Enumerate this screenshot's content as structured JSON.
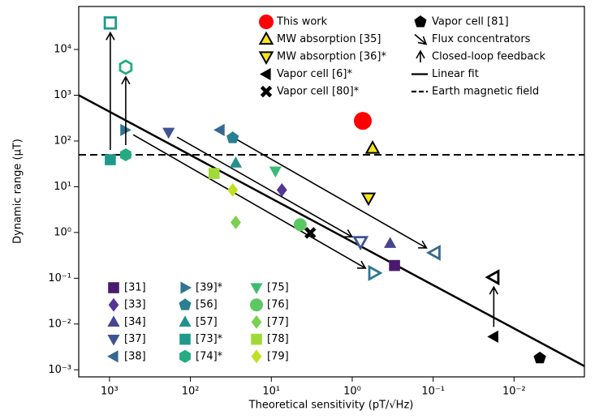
{
  "chart_data": {
    "type": "scatter",
    "xlabel": "Theoretical sensitivity (pT/√Hz)",
    "ylabel": "Dynamic range (µT)",
    "xscale": "log",
    "yscale": "log",
    "xlim": [
      2400,
      0.00135
    ],
    "ylim": [
      0.0007,
      87000
    ],
    "xticks": [
      {
        "value": 1000,
        "label": "10³"
      },
      {
        "value": 100,
        "label": "10²"
      },
      {
        "value": 10,
        "label": "10¹"
      },
      {
        "value": 1,
        "label": "10⁰"
      },
      {
        "value": 0.1,
        "label": "10⁻¹"
      },
      {
        "value": 0.01,
        "label": "10⁻²"
      }
    ],
    "yticks": [
      {
        "value": 0.001,
        "label": "10⁻³"
      },
      {
        "value": 0.01,
        "label": "10⁻²"
      },
      {
        "value": 0.1,
        "label": "10⁻¹"
      },
      {
        "value": 1,
        "label": "10⁰"
      },
      {
        "value": 10,
        "label": "10¹"
      },
      {
        "value": 100,
        "label": "10²"
      },
      {
        "value": 1000,
        "label": "10³"
      },
      {
        "value": 10000,
        "label": "10⁴"
      }
    ],
    "series": [
      {
        "name": "This work",
        "legend": "top",
        "marker": "circle",
        "color": "#ff0000",
        "size": 11,
        "x": [
          0.74
        ],
        "values": [
          275
        ]
      },
      {
        "name": "MW absorption [35]",
        "legend": "top",
        "marker": "triangle-up",
        "color": "#f5e61b",
        "edgecolor": "#000000",
        "x": [
          0.56
        ],
        "values": [
          69
        ]
      },
      {
        "name": "MW absorption [36]*",
        "legend": "top",
        "marker": "triangle-down",
        "color": "#f5e61b",
        "edgecolor": "#000000",
        "x": [
          0.63
        ],
        "values": [
          5.7
        ]
      },
      {
        "name": "Vapor cell [6]*",
        "legend": "top",
        "marker": "triangle-left",
        "color": "#000000",
        "arrow": "feedback",
        "x": [
          0.0178,
          0.0178
        ],
        "values": [
          0.0053,
          0.105
        ]
      },
      {
        "name": "Vapor cell [80]*",
        "legend": "top",
        "marker": "x",
        "color": "#000000",
        "x": [
          3.3
        ],
        "values": [
          0.98
        ]
      },
      {
        "name": "Vapor cell [81]",
        "legend": "top",
        "marker": "pentagon",
        "color": "#000000",
        "x": [
          0.0048
        ],
        "values": [
          0.0018
        ]
      },
      {
        "name": "[31]",
        "legend": "bottom",
        "marker": "square",
        "color": "#4b1a6e",
        "x": [
          0.3
        ],
        "values": [
          0.19
        ]
      },
      {
        "name": "[33]",
        "legend": "bottom",
        "marker": "diamond",
        "color": "#543792",
        "x": [
          7.4
        ],
        "values": [
          8.5
        ]
      },
      {
        "name": "[34]",
        "legend": "bottom",
        "marker": "triangle-up",
        "color": "#47468f",
        "x": [
          0.34
        ],
        "values": [
          0.58
        ]
      },
      {
        "name": "[37]",
        "legend": "bottom",
        "marker": "triangle-down",
        "color": "#3f5593",
        "arrow": "flux",
        "x": [
          186,
          0.79
        ],
        "values": [
          155,
          0.63
        ]
      },
      {
        "name": "[38]",
        "legend": "bottom",
        "marker": "triangle-left",
        "color": "#386791",
        "arrow": "flux",
        "x": [
          43,
          0.095
        ],
        "values": [
          174,
          0.36
        ]
      },
      {
        "name": "[39]*",
        "legend": "bottom",
        "marker": "triangle-right",
        "color": "#2f7693",
        "arrow": "flux",
        "x": [
          646,
          0.54
        ],
        "values": [
          174,
          0.13
        ]
      },
      {
        "name": "[56]",
        "legend": "bottom",
        "marker": "pentagon",
        "color": "#2a7f92",
        "x": [
          30
        ],
        "values": [
          117
        ]
      },
      {
        "name": "[57]",
        "legend": "bottom",
        "marker": "triangle-up",
        "color": "#22918c",
        "x": [
          27.5
        ],
        "values": [
          33
        ]
      },
      {
        "name": "[73]*",
        "legend": "bottom",
        "marker": "square",
        "color": "#1f9a8a",
        "arrow": "feedback",
        "x": [
          977,
          977
        ],
        "values": [
          39,
          38000
        ]
      },
      {
        "name": "[74]*",
        "legend": "bottom",
        "marker": "hexagon",
        "color": "#25ab82",
        "arrow": "feedback",
        "x": [
          630,
          630
        ],
        "values": [
          50,
          4100
        ]
      },
      {
        "name": "[75]",
        "legend": "bottom",
        "marker": "triangle-down",
        "color": "#3dbb74",
        "x": [
          8.9
        ],
        "values": [
          22
        ]
      },
      {
        "name": "[76]",
        "legend": "bottom",
        "marker": "circle",
        "color": "#5cc863",
        "x": [
          4.4
        ],
        "values": [
          1.48
        ]
      },
      {
        "name": "[77]",
        "legend": "bottom",
        "marker": "diamond",
        "color": "#7ad151",
        "x": [
          27.5
        ],
        "values": [
          1.66
        ]
      },
      {
        "name": "[78]",
        "legend": "bottom",
        "marker": "square",
        "color": "#a0da39",
        "x": [
          51
        ],
        "values": [
          19.5
        ]
      },
      {
        "name": "[79]",
        "legend": "bottom",
        "marker": "diamond",
        "color": "#c2df23",
        "x": [
          30
        ],
        "values": [
          8.5
        ]
      }
    ],
    "arrow_legend": [
      {
        "name": "Flux concentrators",
        "arrow": "flux"
      },
      {
        "name": "Closed-loop feedback",
        "arrow": "feedback"
      }
    ],
    "lines": [
      {
        "name": "Linear fit",
        "style": "solid",
        "color": "#000000",
        "x": [
          2400,
          0.00135
        ],
        "values": [
          1000,
          0.0012
        ]
      },
      {
        "name": "Earth magnetic field",
        "style": "dashed",
        "color": "#000000",
        "values": [
          50
        ]
      }
    ]
  }
}
